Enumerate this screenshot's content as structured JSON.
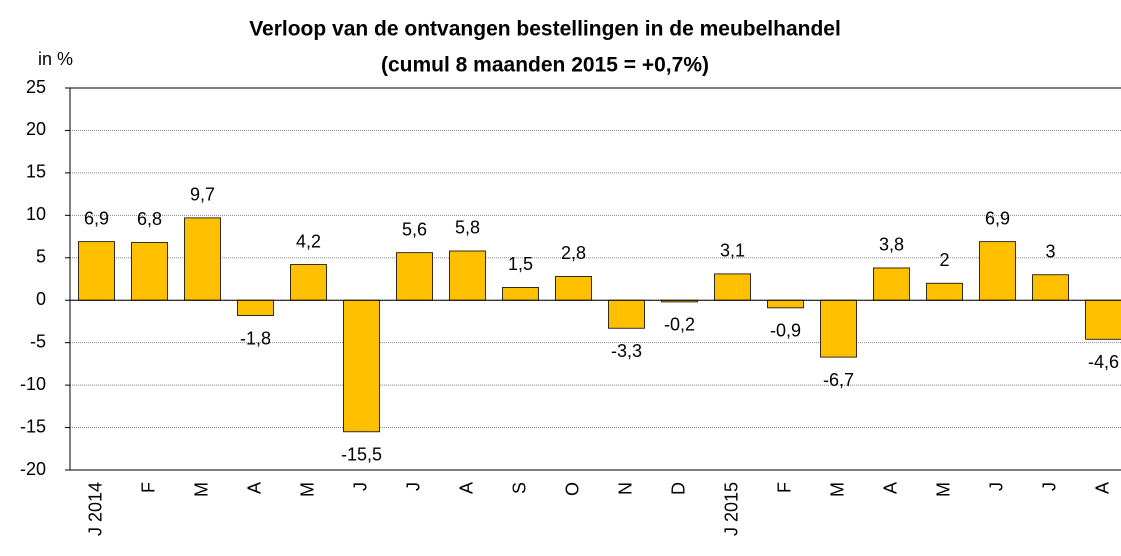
{
  "chart_data": {
    "type": "bar",
    "title": "Verloop van de ontvangen bestellingen in de meubelhandel",
    "subtitle": "(cumul 8 maanden 2015 = +0,7%)",
    "y_label": "in %",
    "categories": [
      "J 2014",
      "F",
      "M",
      "A",
      "M",
      "J",
      "J",
      "A",
      "S",
      "O",
      "N",
      "D",
      "J 2015",
      "F",
      "M",
      "A",
      "M",
      "J",
      "J",
      "A"
    ],
    "values": [
      6.9,
      6.8,
      9.7,
      -1.8,
      4.2,
      -15.5,
      5.6,
      5.8,
      1.5,
      2.8,
      -3.3,
      -0.2,
      3.1,
      -0.9,
      -6.7,
      3.8,
      2,
      6.9,
      3,
      -4.6
    ],
    "value_labels": [
      "6,9",
      "6,8",
      "9,7",
      "-1,8",
      "4,2",
      "-15,5",
      "5,6",
      "5,8",
      "1,5",
      "2,8",
      "-3,3",
      "-0,2",
      "3,1",
      "-0,9",
      "-6,7",
      "3,8",
      "2",
      "6,9",
      "3",
      "-4,6"
    ],
    "color": "#ffc000",
    "ylim": [
      -20,
      25
    ],
    "yticks": [
      -20,
      -15,
      -10,
      -5,
      0,
      5,
      10,
      15,
      20,
      25
    ],
    "grid": true
  }
}
